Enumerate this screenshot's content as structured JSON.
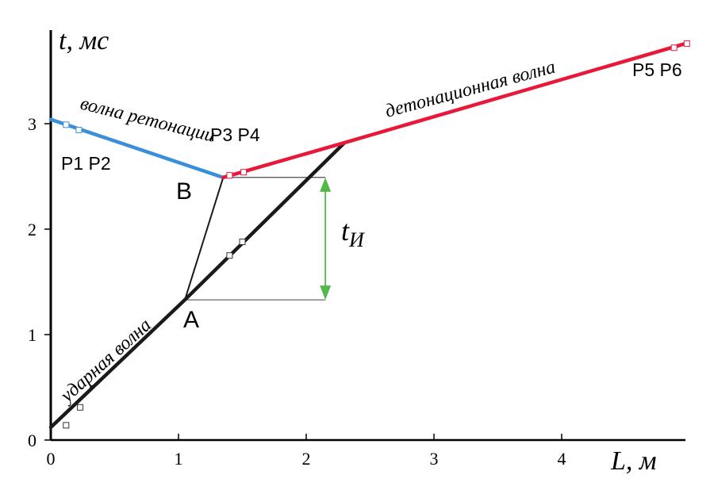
{
  "chart_data": {
    "type": "line",
    "xlabel": "L, м",
    "ylabel": "t, мс",
    "xlim": [
      0,
      5
    ],
    "ylim": [
      0,
      4
    ],
    "x_ticks": [
      "0",
      "1",
      "2",
      "3",
      "4"
    ],
    "y_ticks": [
      "0",
      "1",
      "2",
      "3"
    ],
    "series": [
      {
        "name": "ударная волна",
        "color": "#1a1a1a",
        "x": [
          0,
          1.05,
          2.3
        ],
        "y": [
          0.12,
          1.33,
          2.82
        ]
      },
      {
        "name": "волна ретонации",
        "color": "#3a8fd8",
        "x": [
          0,
          1.35
        ],
        "y": [
          3.04,
          2.49
        ]
      },
      {
        "name": "детонационная волна",
        "color": "#e8183a",
        "x": [
          1.35,
          2.3,
          4.97
        ],
        "y": [
          2.49,
          2.82,
          3.76
        ]
      }
    ],
    "transition_line": {
      "x": [
        1.05,
        1.35
      ],
      "y": [
        1.33,
        2.49
      ],
      "color": "#1a1a1a"
    },
    "sensor_points": [
      {
        "x": 0.12,
        "y": 2.99,
        "color": "#3a8fd8"
      },
      {
        "x": 0.22,
        "y": 2.94,
        "color": "#3a8fd8"
      },
      {
        "x": 1.4,
        "y": 2.51,
        "color": "#e8183a"
      },
      {
        "x": 1.51,
        "y": 2.54,
        "color": "#e8183a"
      },
      {
        "x": 4.88,
        "y": 3.72,
        "color": "#e8183a"
      },
      {
        "x": 4.98,
        "y": 3.76,
        "color": "#e8183a"
      },
      {
        "x": 0.12,
        "y": 0.14,
        "color": "#1a1a1a"
      },
      {
        "x": 0.23,
        "y": 0.31,
        "color": "#1a1a1a"
      },
      {
        "x": 1.4,
        "y": 1.75,
        "color": "#1a1a1a"
      },
      {
        "x": 1.5,
        "y": 1.88,
        "color": "#1a1a1a"
      }
    ],
    "induction_interval": {
      "x": 2.15,
      "y_from": 1.33,
      "y_to": 2.49,
      "color": "#52b847"
    },
    "annotations": {
      "shock_wave": "ударная волна",
      "retonation_wave": "волна ретонации",
      "detonation_wave": "детонационная волна",
      "p12": "P1 P2",
      "p34": "P3 P4",
      "p56": "P5 P6",
      "point_a": "A",
      "point_b": "B",
      "t_induction": "t",
      "t_induction_sub": "И"
    },
    "grid": false,
    "legend": "none"
  }
}
